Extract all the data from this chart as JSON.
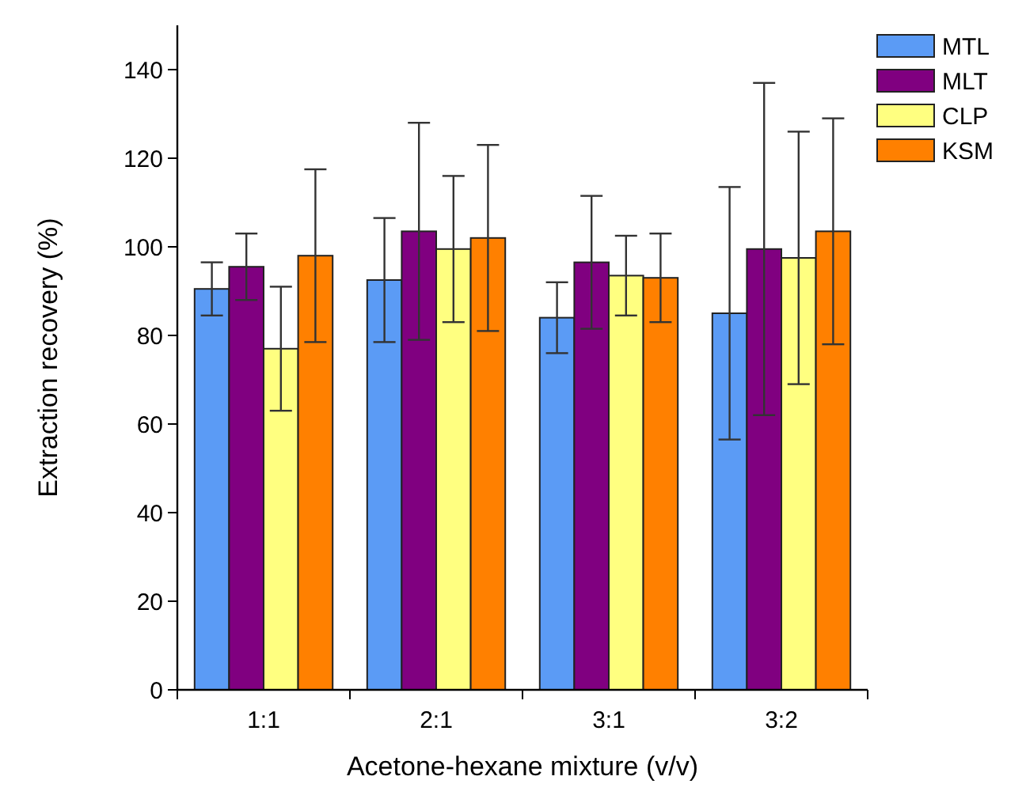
{
  "chart_data": {
    "type": "bar",
    "xlabel": "Acetone-hexane mixture (v/v)",
    "ylabel": "Extraction recovery (%)",
    "categories": [
      "1:1",
      "2:1",
      "3:1",
      "3:2"
    ],
    "series": [
      {
        "name": "MTL",
        "color": "#5b9bf5",
        "values": [
          90.5,
          92.5,
          84,
          85
        ],
        "errors": [
          6,
          14,
          8,
          28.5
        ]
      },
      {
        "name": "MLT",
        "color": "#800080",
        "values": [
          95.5,
          103.5,
          96.5,
          99.5
        ],
        "errors": [
          7.5,
          24.5,
          15,
          37.5
        ]
      },
      {
        "name": "CLP",
        "color": "#ffff80",
        "values": [
          77,
          99.5,
          93.5,
          97.5
        ],
        "errors": [
          14,
          16.5,
          9,
          28.5
        ]
      },
      {
        "name": "KSM",
        "color": "#ff8000",
        "values": [
          98,
          102,
          93,
          103.5
        ],
        "errors": [
          19.5,
          21,
          10,
          25.5
        ]
      }
    ],
    "ylim": [
      0,
      150
    ],
    "yticks": [
      0,
      20,
      40,
      60,
      80,
      100,
      120,
      140
    ],
    "legend": "top right"
  }
}
